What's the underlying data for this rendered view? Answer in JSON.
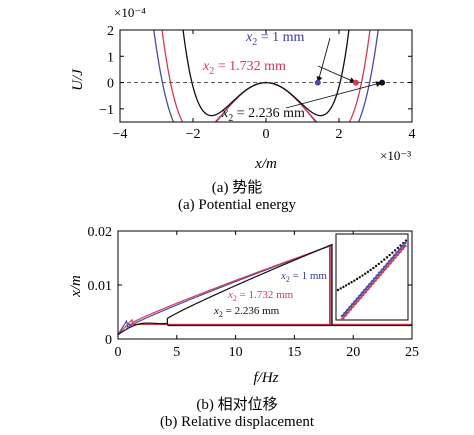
{
  "chart_data": [
    {
      "type": "line",
      "subtitle": "(a) 势能",
      "subtitle_en": "(a) Potential energy",
      "xlabel": "x/m",
      "ylabel": "U/J",
      "x_multiplier": "×10⁻³",
      "y_multiplier": "×10⁻⁴",
      "xlim": [
        -4,
        4
      ],
      "ylim": [
        -1.5,
        2
      ],
      "xticks": [
        "−4",
        "−2",
        "0",
        "2",
        "4"
      ],
      "yticks": [
        "2",
        "1",
        "0",
        "−1"
      ],
      "baseline": {
        "y": 0,
        "style": "dashed"
      },
      "series": [
        {
          "name": "x₂ = 1 mm",
          "color": "#4b4ba6",
          "pot": [
            0.1,
            0.003
          ],
          "equilibrium_x": 1.42
        },
        {
          "name": "x₂ = 1.732 mm",
          "color": "#d43a55",
          "pot": [
            0.105,
            0.006
          ],
          "equilibrium_x": 2.46
        },
        {
          "name": "x₂ = 2.236 mm",
          "color": "#111111",
          "pot": [
            0.14,
            0.025
          ],
          "equilibrium_x": 3.18
        }
      ],
      "annotations": [
        {
          "text_var": "x",
          "text_sub": "2",
          "text_rest": " = 1 mm",
          "color": "#3a3aa0"
        },
        {
          "text_var": "x",
          "text_sub": "2",
          "text_rest": " = 1.732 mm",
          "color": "#d43a55"
        },
        {
          "text_var": "x",
          "text_sub": "2",
          "text_rest": " = 2.236 mm",
          "color": "#111111"
        }
      ]
    },
    {
      "type": "line",
      "subtitle": "(b) 相对位移",
      "subtitle_en": "(b) Relative displacement",
      "xlabel": "f/Hz",
      "ylabel": "x/m",
      "xlim": [
        0,
        25
      ],
      "ylim": [
        0,
        0.02
      ],
      "xticks": [
        "0",
        "5",
        "10",
        "15",
        "20",
        "25"
      ],
      "yticks": [
        "0.02",
        "0.01",
        "0"
      ],
      "series": [
        {
          "name": "x₂ = 1 mm",
          "color": "#4b4ba6",
          "jump_up": 0.8,
          "jump_down": 18.0,
          "peak": 0.0172,
          "low": 0.0027
        },
        {
          "name": "x₂ = 1.732 mm",
          "color": "#d43a55",
          "jump_up": 1.2,
          "jump_down": 18.1,
          "peak": 0.0173,
          "low": 0.0027
        },
        {
          "name": "x₂ = 2.236 mm",
          "color": "#111111",
          "jump_up": 4.2,
          "jump_down": 18.2,
          "peak": 0.0175,
          "low": 0.0025
        }
      ],
      "annotations": [
        {
          "text_var": "x",
          "text_sub": "2",
          "text_rest": " = 1 mm",
          "color": "#3a3aa0"
        },
        {
          "text_var": "x",
          "text_sub": "2",
          "text_rest": " = 1.732 mm",
          "color": "#d43a55"
        },
        {
          "text_var": "x",
          "text_sub": "2",
          "text_rest": " = 2.236 mm",
          "color": "#111111"
        }
      ],
      "inset": {
        "shows": "zoom of peak region"
      }
    }
  ]
}
